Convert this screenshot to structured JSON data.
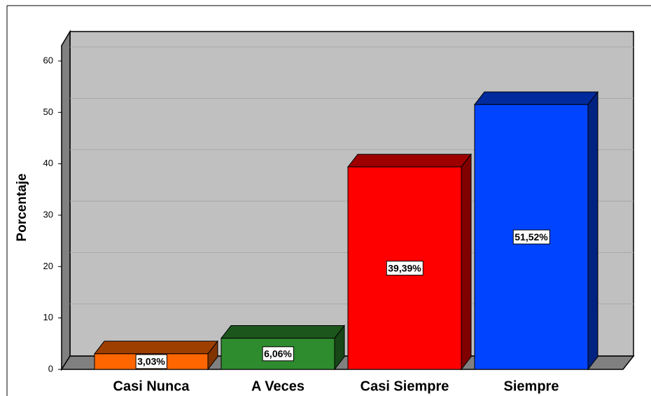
{
  "chart_data": {
    "type": "bar3d",
    "y_label": "Porcentaje",
    "categories": [
      "Casi Nunca",
      "A Veces",
      "Casi Siempre",
      "Siempre"
    ],
    "values": [
      3.03,
      6.06,
      39.39,
      51.52
    ],
    "value_labels": [
      "3,03%",
      "6,06%",
      "39,39%",
      "51,52%"
    ],
    "colors": [
      "#ff6600",
      "#2e8b2e",
      "#ff0000",
      "#0044ff"
    ],
    "ylim": [
      0,
      63
    ],
    "yticks": [
      0,
      10,
      20,
      30,
      40,
      50,
      60
    ],
    "grid": true
  }
}
